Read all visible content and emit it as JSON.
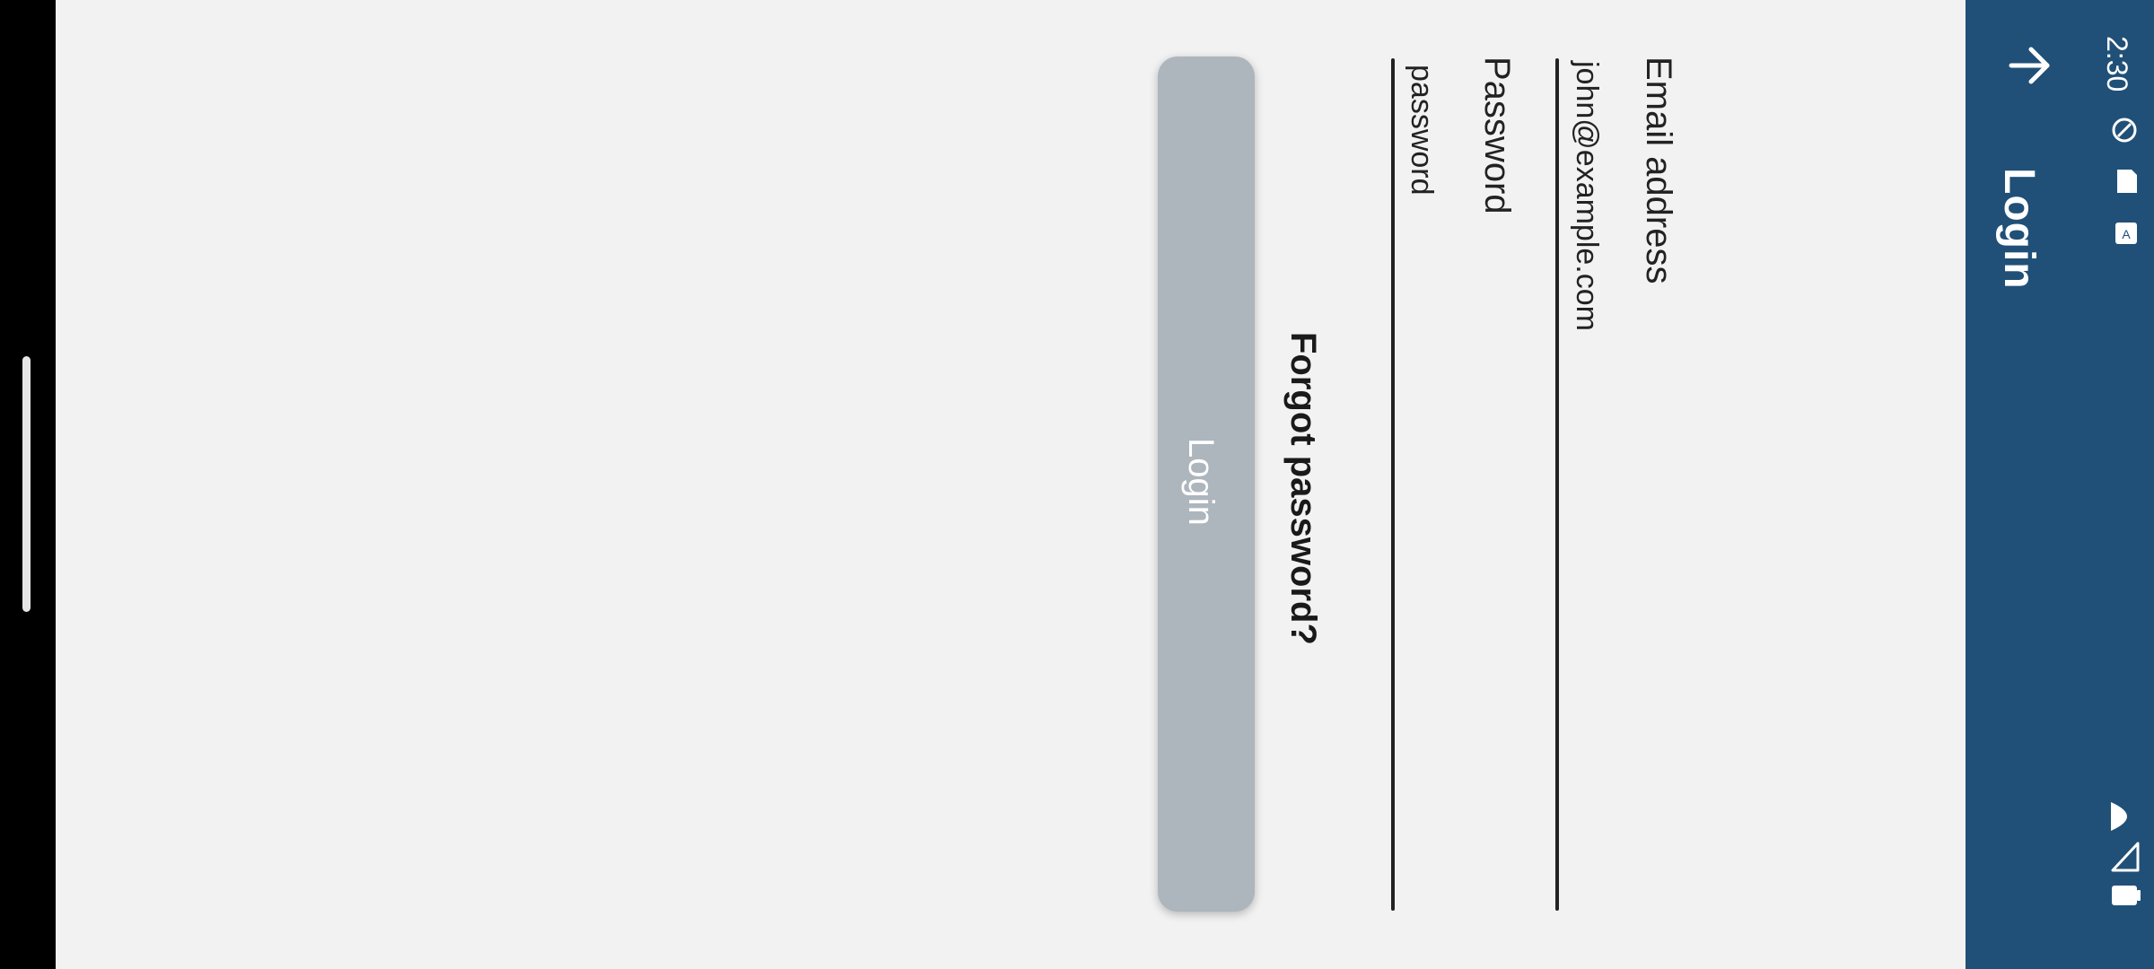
{
  "status_bar": {
    "time": "2:30",
    "icons": [
      "vpn-key-icon",
      "sd-card-icon",
      "keyboard-icon",
      "wifi-icon",
      "signal-icon",
      "battery-icon"
    ]
  },
  "app_bar": {
    "title": "Login",
    "back_icon": "arrow-back-icon",
    "background": "#205077"
  },
  "form": {
    "email": {
      "label": "Email address",
      "value": "john@example.com"
    },
    "password": {
      "label": "Password",
      "value": "password"
    },
    "forgot_password": "Forgot password?",
    "login_button": {
      "label": "Login",
      "state": "disabled",
      "color": "#adb5bd"
    }
  },
  "colors": {
    "background": "#f2f2f2",
    "text": "#222222"
  }
}
